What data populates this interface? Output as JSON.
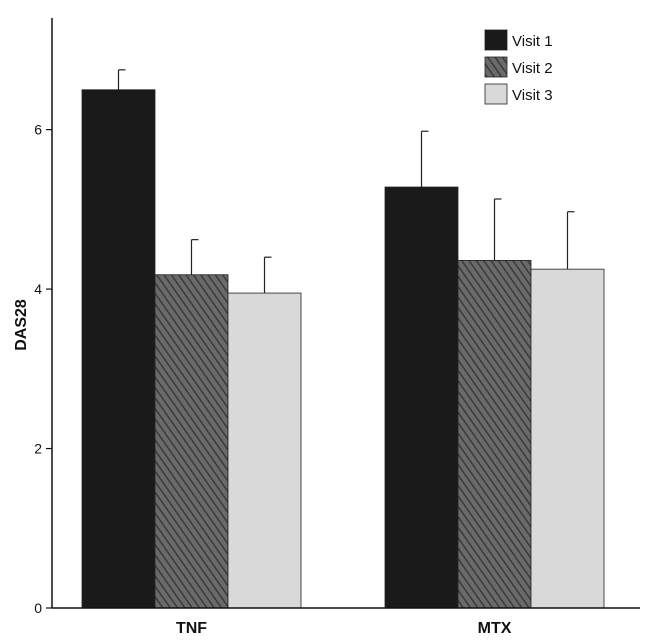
{
  "chart_data": {
    "type": "bar",
    "categories": [
      "TNF",
      "MTX"
    ],
    "series": [
      {
        "name": "Visit 1",
        "values": [
          6.5,
          5.28
        ],
        "errors": [
          0.25,
          0.7
        ],
        "color": "#1a1a1a",
        "pattern": "solid"
      },
      {
        "name": "Visit 2",
        "values": [
          4.18,
          4.36
        ],
        "errors": [
          0.44,
          0.77
        ],
        "color": "#555555",
        "pattern": "hatch"
      },
      {
        "name": "Visit 3",
        "values": [
          3.95,
          4.25
        ],
        "errors": [
          0.45,
          0.72
        ],
        "color": "#d9d9d9",
        "pattern": "solid"
      }
    ],
    "title": "",
    "xlabel": "",
    "ylabel": "DAS28",
    "ylim": [
      0,
      7.4
    ],
    "yticks": [
      0,
      2,
      4,
      6
    ],
    "grid": false,
    "legend_position": "top-right"
  }
}
